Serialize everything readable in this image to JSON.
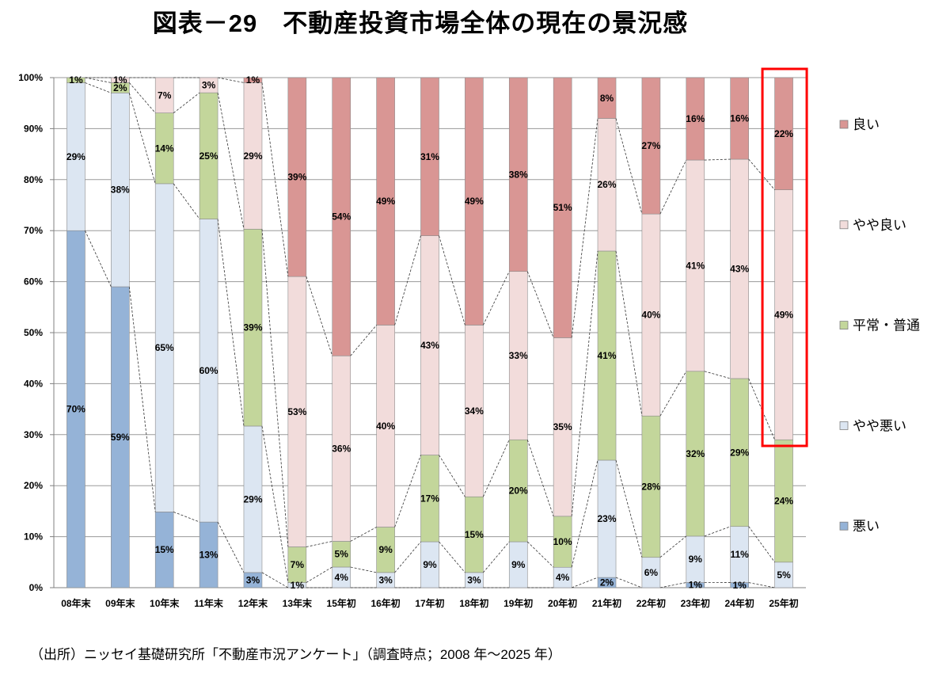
{
  "chart_data": {
    "type": "bar",
    "stacked": "percent",
    "title": "図表－29　不動産投資市場全体の現在の景況感",
    "source": "（出所）ニッセイ基礎研究所「不動産市況アンケート」（調査時点；2008 年～2025 年）",
    "xlabel": "",
    "ylabel": "",
    "ylim": [
      0,
      100
    ],
    "yticks": [
      "0%",
      "10%",
      "20%",
      "30%",
      "40%",
      "50%",
      "60%",
      "70%",
      "80%",
      "90%",
      "100%"
    ],
    "value_suffix": "%",
    "grid": true,
    "legend": "right",
    "series_lines": true,
    "categories": [
      "08年末",
      "09年末",
      "10年末",
      "11年末",
      "12年末",
      "13年末",
      "15年初",
      "16年初",
      "17年初",
      "18年初",
      "19年初",
      "20年初",
      "21年初",
      "22年初",
      "23年初",
      "24年初",
      "25年初"
    ],
    "series": [
      {
        "name": "悪い",
        "color": "#95B3D7",
        "values": [
          70,
          59,
          15,
          13,
          3,
          0,
          0,
          0,
          0,
          0,
          0,
          0,
          2,
          0,
          1,
          1,
          0
        ]
      },
      {
        "name": "やや悪い",
        "color": "#DCE6F2",
        "values": [
          29,
          38,
          65,
          60,
          29,
          1,
          4,
          3,
          9,
          3,
          9,
          4,
          23,
          6,
          9,
          11,
          5
        ]
      },
      {
        "name": "平常・普通",
        "color": "#C3D69B",
        "values": [
          1,
          2,
          14,
          25,
          39,
          7,
          5,
          9,
          17,
          15,
          20,
          10,
          41,
          28,
          32,
          29,
          24
        ]
      },
      {
        "name": "やや良い",
        "color": "#F2DCDB",
        "values": [
          0,
          1,
          7,
          3,
          29,
          53,
          36,
          40,
          43,
          34,
          33,
          35,
          26,
          40,
          41,
          43,
          49
        ]
      },
      {
        "name": "良い",
        "color": "#D99694",
        "values": [
          0,
          0,
          0,
          0,
          1,
          39,
          54,
          49,
          31,
          49,
          38,
          51,
          8,
          27,
          16,
          16,
          22
        ]
      }
    ],
    "highlight": {
      "category": "25年初",
      "color": "#FF0000"
    }
  }
}
